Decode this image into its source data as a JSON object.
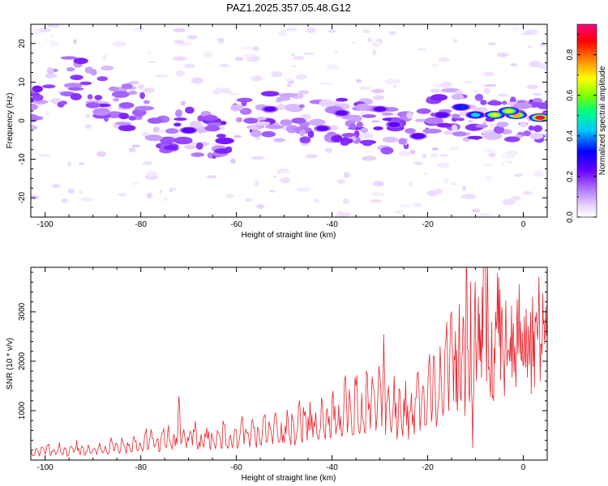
{
  "title": "PAZ1.2025.357.05.48.G12",
  "chart_data": [
    {
      "type": "heatmap",
      "name": "spectrogram",
      "xlabel": "Height of straight line (km)",
      "ylabel": "Frequency (Hz)",
      "xlim": [
        -103,
        5
      ],
      "ylim": [
        -25,
        25
      ],
      "xticks": [
        -100,
        -80,
        -60,
        -40,
        -20,
        0
      ],
      "yticks": [
        -20,
        -10,
        0,
        10,
        20
      ],
      "colorbar": {
        "label": "Normalized spectral amplitude",
        "range": [
          0,
          0.95
        ],
        "ticks": [
          0.0,
          0.2,
          0.4,
          0.6,
          0.8
        ],
        "colors": [
          "#ffffff",
          "#e8d2ff",
          "#b47cff",
          "#6a00ff",
          "#0000ff",
          "#00c8ff",
          "#00ff80",
          "#7fff00",
          "#ffff00",
          "#ff8000",
          "#ff0000",
          "#ff0080"
        ]
      },
      "ridge": [
        {
          "x": -102,
          "f": 4
        },
        {
          "x": -98,
          "f": 8
        },
        {
          "x": -95,
          "f": 12
        },
        {
          "x": -90,
          "f": 8
        },
        {
          "x": -85,
          "f": 5
        },
        {
          "x": -80,
          "f": 2
        },
        {
          "x": -75,
          "f": -2
        },
        {
          "x": -70,
          "f": -3
        },
        {
          "x": -65,
          "f": -4
        },
        {
          "x": -60,
          "f": -1
        },
        {
          "x": -55,
          "f": 2
        },
        {
          "x": -50,
          "f": 1
        },
        {
          "x": -45,
          "f": 0
        },
        {
          "x": -40,
          "f": -1
        },
        {
          "x": -35,
          "f": 1
        },
        {
          "x": -30,
          "f": -2
        },
        {
          "x": -25,
          "f": -4
        },
        {
          "x": -20,
          "f": 2
        },
        {
          "x": -15,
          "f": 2
        },
        {
          "x": -10,
          "f": 1
        },
        {
          "x": -5,
          "f": 1
        },
        {
          "x": 0,
          "f": 1
        },
        {
          "x": 5,
          "f": 1
        }
      ],
      "blobs": [
        {
          "x": 3.5,
          "f": 0.8,
          "amp": 0.93
        },
        {
          "x": -1.5,
          "f": 1.5,
          "amp": 0.82
        },
        {
          "x": -6,
          "f": 1.5,
          "amp": 0.72
        },
        {
          "x": -3,
          "f": 2.5,
          "amp": 0.7
        },
        {
          "x": -10,
          "f": 1.5,
          "amp": 0.45
        },
        {
          "x": -13,
          "f": 3.5,
          "amp": 0.38
        },
        {
          "x": -17,
          "f": 1.5,
          "amp": 0.3
        },
        {
          "x": -22,
          "f": -4,
          "amp": 0.3
        },
        {
          "x": -27,
          "f": -1,
          "amp": 0.25
        },
        {
          "x": -30,
          "f": 3,
          "amp": 0.25
        },
        {
          "x": -38,
          "f": 2,
          "amp": 0.25
        },
        {
          "x": -42,
          "f": -2,
          "amp": 0.25
        },
        {
          "x": -47,
          "f": 0,
          "amp": 0.2
        },
        {
          "x": -53,
          "f": 3,
          "amp": 0.25
        },
        {
          "x": -57,
          "f": 0,
          "amp": 0.2
        },
        {
          "x": -65,
          "f": -2,
          "amp": 0.22
        },
        {
          "x": -70,
          "f": -2.5,
          "amp": 0.3
        },
        {
          "x": -77,
          "f": 0,
          "amp": 0.22
        },
        {
          "x": -83,
          "f": 4,
          "amp": 0.22
        },
        {
          "x": -90,
          "f": 4,
          "amp": 0.2
        }
      ]
    },
    {
      "type": "line",
      "name": "snr",
      "xlabel": "Height of straight line (km)",
      "ylabel": "SNR (10 * v/v)",
      "xlim": [
        -103,
        5
      ],
      "ylim": [
        0,
        3900
      ],
      "xticks": [
        -100,
        -80,
        -60,
        -40,
        -20,
        0
      ],
      "yticks": [
        1000,
        2000,
        3000
      ],
      "color": "#e8252d",
      "points": [
        [
          -103,
          200
        ],
        [
          -102.4,
          95
        ],
        [
          -101.8,
          240
        ],
        [
          -101.2,
          80
        ],
        [
          -100.6,
          260
        ],
        [
          -100,
          120
        ],
        [
          -99.4,
          300
        ],
        [
          -98.8,
          90
        ],
        [
          -98.2,
          210
        ],
        [
          -97.6,
          140
        ],
        [
          -97,
          350
        ],
        [
          -96.4,
          110
        ],
        [
          -95.8,
          230
        ],
        [
          -95.2,
          90
        ],
        [
          -94.6,
          280
        ],
        [
          -94,
          150
        ],
        [
          -93.4,
          400
        ],
        [
          -92.8,
          120
        ],
        [
          -92.2,
          260
        ],
        [
          -91.6,
          100
        ],
        [
          -91,
          310
        ],
        [
          -90.4,
          140
        ],
        [
          -89.8,
          230
        ],
        [
          -89.2,
          110
        ],
        [
          -88.6,
          350
        ],
        [
          -88,
          160
        ],
        [
          -87.4,
          280
        ],
        [
          -86.8,
          120
        ],
        [
          -86.2,
          450
        ],
        [
          -85.6,
          180
        ],
        [
          -85,
          320
        ],
        [
          -84.4,
          140
        ],
        [
          -83.8,
          400
        ],
        [
          -83.2,
          200
        ],
        [
          -82.6,
          290
        ],
        [
          -82,
          170
        ],
        [
          -81.4,
          480
        ],
        [
          -80.8,
          210
        ],
        [
          -80.2,
          350
        ],
        [
          -79.6,
          180
        ],
        [
          -79,
          560
        ],
        [
          -78.4,
          240
        ],
        [
          -77.8,
          620
        ],
        [
          -77.2,
          260
        ],
        [
          -76.6,
          420
        ],
        [
          -76,
          180
        ],
        [
          -75.4,
          560
        ],
        [
          -74.8,
          260
        ],
        [
          -74.2,
          700
        ],
        [
          -73.6,
          280
        ],
        [
          -73,
          520
        ],
        [
          -72.4,
          320
        ],
        [
          -72,
          1290
        ],
        [
          -71.6,
          330
        ],
        [
          -71,
          620
        ],
        [
          -70.4,
          250
        ],
        [
          -69.8,
          540
        ],
        [
          -69.2,
          300
        ],
        [
          -68.6,
          780
        ],
        [
          -68,
          220
        ],
        [
          -67.4,
          520
        ],
        [
          -66.8,
          260
        ],
        [
          -66.2,
          650
        ],
        [
          -65.6,
          280
        ],
        [
          -65,
          460
        ],
        [
          -64.4,
          230
        ],
        [
          -63.8,
          560
        ],
        [
          -63.2,
          260
        ],
        [
          -62.6,
          720
        ],
        [
          -62,
          300
        ],
        [
          -61.4,
          480
        ],
        [
          -60.8,
          250
        ],
        [
          -60.2,
          620
        ],
        [
          -59.6,
          290
        ],
        [
          -59,
          760
        ],
        [
          -58.4,
          320
        ],
        [
          -57.8,
          540
        ],
        [
          -57.2,
          260
        ],
        [
          -56.6,
          820
        ],
        [
          -56,
          340
        ],
        [
          -55.4,
          640
        ],
        [
          -54.8,
          300
        ],
        [
          -54.2,
          880
        ],
        [
          -53.6,
          360
        ],
        [
          -53,
          700
        ],
        [
          -52.4,
          330
        ],
        [
          -51.8,
          960
        ],
        [
          -51.2,
          380
        ],
        [
          -50.6,
          760
        ],
        [
          -50,
          350
        ],
        [
          -49.4,
          1020
        ],
        [
          -48.8,
          420
        ],
        [
          -48.2,
          820
        ],
        [
          -47.6,
          380
        ],
        [
          -47,
          1100
        ],
        [
          -46.4,
          430
        ],
        [
          -45.8,
          900
        ],
        [
          -45.2,
          400
        ],
        [
          -44.6,
          1180
        ],
        [
          -44,
          460
        ],
        [
          -43.4,
          960
        ],
        [
          -42.8,
          420
        ],
        [
          -42.2,
          1260
        ],
        [
          -41.6,
          500
        ],
        [
          -41,
          1040
        ],
        [
          -40.4,
          450
        ],
        [
          -39.8,
          1400
        ],
        [
          -39.2,
          520
        ],
        [
          -38.6,
          1120
        ],
        [
          -38,
          480
        ],
        [
          -37.4,
          1580
        ],
        [
          -36.8,
          560
        ],
        [
          -36.2,
          1200
        ],
        [
          -35.6,
          520
        ],
        [
          -35,
          1500
        ],
        [
          -34.4,
          600
        ],
        [
          -33.8,
          1350
        ],
        [
          -33.2,
          560
        ],
        [
          -32.6,
          1720
        ],
        [
          -32,
          640
        ],
        [
          -31.4,
          1480
        ],
        [
          -30.8,
          600
        ],
        [
          -30.2,
          1900
        ],
        [
          -29.6,
          680
        ],
        [
          -29.2,
          2540
        ],
        [
          -28.8,
          520
        ],
        [
          -28.2,
          1500
        ],
        [
          -27.6,
          560
        ],
        [
          -27,
          1700
        ],
        [
          -26.4,
          420
        ],
        [
          -25.8,
          1400
        ],
        [
          -25.2,
          480
        ],
        [
          -24.6,
          1600
        ],
        [
          -24,
          420
        ],
        [
          -23.4,
          1350
        ],
        [
          -22.8,
          520
        ],
        [
          -22.2,
          1750
        ],
        [
          -21.6,
          600
        ],
        [
          -21,
          1500
        ],
        [
          -20.4,
          700
        ],
        [
          -19.8,
          1900
        ],
        [
          -19.2,
          780
        ],
        [
          -18.6,
          2100
        ],
        [
          -18,
          800
        ],
        [
          -17.4,
          2300
        ],
        [
          -16.8,
          900
        ],
        [
          -16.2,
          2450
        ],
        [
          -15.6,
          1000
        ],
        [
          -15,
          3000
        ],
        [
          -14.6,
          1200
        ],
        [
          -14.2,
          2600
        ],
        [
          -13.8,
          1000
        ],
        [
          -13.4,
          3150
        ],
        [
          -13,
          1200
        ],
        [
          -12.6,
          2900
        ],
        [
          -12.2,
          900
        ],
        [
          -11.8,
          3850
        ],
        [
          -11.4,
          1400
        ],
        [
          -11,
          3600
        ],
        [
          -10.6,
          250
        ],
        [
          -10.2,
          3000
        ],
        [
          -9.8,
          1600
        ],
        [
          -9.4,
          3300
        ],
        [
          -9,
          2000
        ],
        [
          -8.6,
          3500
        ],
        [
          -8.2,
          3900
        ],
        [
          -7.8,
          2600
        ],
        [
          -7.4,
          3200
        ],
        [
          -7,
          1600
        ],
        [
          -6.6,
          2800
        ],
        [
          -6.2,
          1200
        ],
        [
          -5.8,
          3000
        ],
        [
          -5.4,
          3780
        ],
        [
          -5,
          2300
        ],
        [
          -4.6,
          2900
        ],
        [
          -4.2,
          2100
        ],
        [
          -3.8,
          2400
        ],
        [
          -3.4,
          1900
        ],
        [
          -3,
          2200
        ],
        [
          -2.6,
          2000
        ],
        [
          -2.2,
          2500
        ],
        [
          -1.8,
          2300
        ],
        [
          -1.4,
          2700
        ],
        [
          -1,
          2500
        ],
        [
          -0.6,
          2800
        ],
        [
          -0.2,
          2600
        ],
        [
          0.2,
          2900
        ],
        [
          0.6,
          3050
        ],
        [
          1,
          2700
        ],
        [
          1.4,
          2500
        ],
        [
          1.8,
          2400
        ],
        [
          2.2,
          2600
        ],
        [
          2.6,
          2800
        ],
        [
          3,
          2450
        ],
        [
          3.4,
          2700
        ],
        [
          3.8,
          2350
        ],
        [
          4.2,
          2750
        ],
        [
          4.6,
          2500
        ],
        [
          5,
          2650
        ]
      ]
    }
  ]
}
